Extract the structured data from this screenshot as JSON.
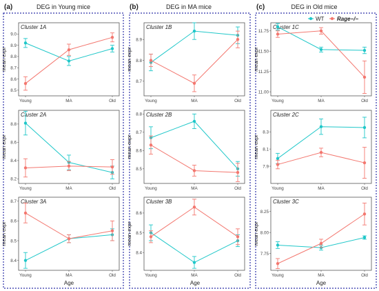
{
  "colors": {
    "wt": "#1fc7c9",
    "rage": "#f3776f",
    "border": "#2b2fa8",
    "panel_border": "#555555",
    "text": "#222222",
    "tick": "#444444"
  },
  "legend": {
    "wt_label": "WT",
    "rage_label": "Rage−/−"
  },
  "axis": {
    "xlabel": "Age",
    "ylabel": "mean expr",
    "categories": [
      "Young",
      "MA",
      "Old"
    ]
  },
  "columns": [
    {
      "letter": "(a)",
      "title": "DEG in Young mice"
    },
    {
      "letter": "(b)",
      "title": "DEG in MA mice"
    },
    {
      "letter": "(c)",
      "title": "DEG in Old mice"
    }
  ],
  "chart_data": [
    {
      "type": "line",
      "title": "Cluster 1A",
      "ylabel": "mean expr",
      "xlabel": "",
      "categories": [
        "Young",
        "MA",
        "Old"
      ],
      "ylim": [
        8.45,
        9.1
      ],
      "yticks": [
        8.5,
        8.6,
        8.7,
        8.8,
        8.9,
        9.0
      ],
      "series": [
        {
          "name": "WT",
          "values": [
            8.92,
            8.76,
            8.87
          ],
          "err": [
            0.04,
            0.04,
            0.03
          ]
        },
        {
          "name": "Rage−/−",
          "values": [
            8.56,
            8.86,
            8.97
          ],
          "err": [
            0.06,
            0.05,
            0.04
          ]
        }
      ]
    },
    {
      "type": "line",
      "title": "Cluster 2A",
      "ylabel": "mean expr",
      "xlabel": "",
      "categories": [
        "Young",
        "MA",
        "Old"
      ],
      "ylim": [
        8.15,
        8.95
      ],
      "yticks": [
        8.2,
        8.4,
        8.6,
        8.8
      ],
      "series": [
        {
          "name": "WT",
          "values": [
            8.81,
            8.38,
            8.27
          ],
          "err": [
            0.13,
            0.08,
            0.07
          ]
        },
        {
          "name": "Rage−/−",
          "values": [
            8.32,
            8.34,
            8.33
          ],
          "err": [
            0.1,
            0.05,
            0.08
          ]
        }
      ]
    },
    {
      "type": "line",
      "title": "Cluster 3A",
      "ylabel": "mean expr",
      "xlabel": "Age",
      "categories": [
        "Young",
        "MA",
        "Old"
      ],
      "ylim": [
        8.35,
        8.72
      ],
      "yticks": [
        8.4,
        8.5,
        8.6,
        8.7
      ],
      "series": [
        {
          "name": "WT",
          "values": [
            8.4,
            8.51,
            8.53
          ],
          "err": [
            0.04,
            0.02,
            0.03
          ]
        },
        {
          "name": "Rage−/−",
          "values": [
            8.64,
            8.51,
            8.55
          ],
          "err": [
            0.05,
            0.02,
            0.05
          ]
        }
      ]
    },
    {
      "type": "line",
      "title": "Cluster 1B",
      "ylabel": "mean expr",
      "xlabel": "",
      "categories": [
        "Young",
        "MA",
        "Old"
      ],
      "ylim": [
        8.63,
        8.98
      ],
      "yticks": [
        8.7,
        8.8,
        8.9
      ],
      "series": [
        {
          "name": "WT",
          "values": [
            8.79,
            8.94,
            8.92
          ],
          "err": [
            0.04,
            0.04,
            0.04
          ]
        },
        {
          "name": "Rage−/−",
          "values": [
            8.8,
            8.69,
            8.9
          ],
          "err": [
            0.03,
            0.04,
            0.04
          ]
        }
      ]
    },
    {
      "type": "line",
      "title": "Cluster 2B",
      "ylabel": "mean expr",
      "xlabel": "",
      "categories": [
        "Young",
        "MA",
        "Old"
      ],
      "ylim": [
        8.42,
        8.82
      ],
      "yticks": [
        8.5,
        8.6,
        8.7,
        8.8
      ],
      "series": [
        {
          "name": "WT",
          "values": [
            8.67,
            8.76,
            8.5
          ],
          "err": [
            0.06,
            0.04,
            0.04
          ]
        },
        {
          "name": "Rage−/−",
          "values": [
            8.63,
            8.49,
            8.48
          ],
          "err": [
            0.05,
            0.03,
            0.05
          ]
        }
      ]
    },
    {
      "type": "line",
      "title": "Cluster 3B",
      "ylabel": "mean expr",
      "xlabel": "Age",
      "categories": [
        "Young",
        "MA",
        "Old"
      ],
      "ylim": [
        8.31,
        8.68
      ],
      "yticks": [
        8.4,
        8.5,
        8.6
      ],
      "series": [
        {
          "name": "WT",
          "values": [
            8.5,
            8.35,
            8.46
          ],
          "err": [
            0.04,
            0.03,
            0.03
          ]
        },
        {
          "name": "Rage−/−",
          "values": [
            8.48,
            8.63,
            8.48
          ],
          "err": [
            0.03,
            0.04,
            0.04
          ]
        }
      ]
    },
    {
      "type": "line",
      "title": "Cluster 1C",
      "ylabel": "mean expr",
      "xlabel": "",
      "categories": [
        "Young",
        "MA",
        "Old"
      ],
      "ylim": [
        10.95,
        11.85
      ],
      "yticks": [
        11.0,
        11.25,
        11.5,
        11.75
      ],
      "series": [
        {
          "name": "WT",
          "values": [
            11.8,
            11.52,
            11.51
          ],
          "err": [
            0.04,
            0.03,
            0.04
          ]
        },
        {
          "name": "Rage−/−",
          "values": [
            11.71,
            11.75,
            11.18
          ],
          "err": [
            0.04,
            0.04,
            0.2
          ]
        }
      ]
    },
    {
      "type": "line",
      "title": "Cluster 2C",
      "ylabel": "mean expr",
      "xlabel": "",
      "categories": [
        "Young",
        "MA",
        "Old"
      ],
      "ylim": [
        7.7,
        8.55
      ],
      "yticks": [
        7.9,
        8.1,
        8.3
      ],
      "series": [
        {
          "name": "WT",
          "values": [
            7.99,
            8.36,
            8.35
          ],
          "err": [
            0.06,
            0.09,
            0.12
          ]
        },
        {
          "name": "Rage−/−",
          "values": [
            7.92,
            8.06,
            7.94
          ],
          "err": [
            0.05,
            0.05,
            0.18
          ]
        }
      ]
    },
    {
      "type": "line",
      "title": "Cluster 3C",
      "ylabel": "mean expr",
      "xlabel": "Age",
      "categories": [
        "Young",
        "MA",
        "Old"
      ],
      "ylim": [
        7.55,
        8.42
      ],
      "yticks": [
        7.75,
        8.0,
        8.25
      ],
      "series": [
        {
          "name": "WT",
          "values": [
            7.85,
            7.82,
            7.94
          ],
          "err": [
            0.04,
            0.03,
            0.02
          ]
        },
        {
          "name": "Rage−/−",
          "values": [
            7.63,
            7.87,
            8.22
          ],
          "err": [
            0.06,
            0.05,
            0.13
          ]
        }
      ]
    }
  ]
}
